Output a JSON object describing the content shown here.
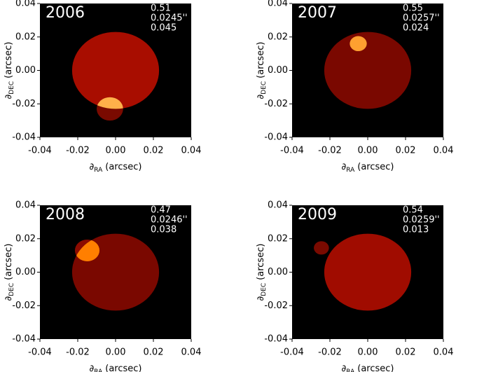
{
  "chart_data": [
    {
      "type": "spot",
      "title": "2006",
      "annotations": [
        "0.51",
        "0.0245''",
        "0.045"
      ],
      "xlabel": {
        "symbol": "∂",
        "sub": "RA",
        "unit": "(arcsec)"
      },
      "ylabel": {
        "symbol": "∂",
        "sub": "DEC",
        "unit": "(arcsec)"
      },
      "xlim": [
        -0.04,
        0.04
      ],
      "ylim": [
        -0.04,
        0.04
      ],
      "xticks": [
        -0.04,
        -0.02,
        {
          "value": 0,
          "label": "0.00"
        },
        0.02,
        0.04
      ],
      "yticks": [
        -0.04,
        -0.02,
        {
          "value": 0,
          "label": "0.00"
        },
        0.02,
        0.04
      ],
      "disk": {
        "x": 0,
        "y": 0,
        "r": 0.023,
        "color": "#a80d00"
      },
      "spot": {
        "x": -0.003,
        "y": -0.023,
        "r": 0.007,
        "color": "#7a0a00",
        "inside_color": "#ffb04a"
      }
    },
    {
      "type": "spot",
      "title": "2007",
      "annotations": [
        "0.55",
        "0.0257''",
        "0.024"
      ],
      "xlabel": {
        "symbol": "∂",
        "sub": "RA",
        "unit": "(arcsec)"
      },
      "ylabel": {
        "symbol": "∂",
        "sub": "DEC",
        "unit": "(arcsec)"
      },
      "xlim": [
        -0.04,
        0.04
      ],
      "ylim": [
        -0.04,
        0.04
      ],
      "xticks": [
        -0.04,
        -0.02,
        {
          "value": 0,
          "label": "0.00"
        },
        0.02,
        0.04
      ],
      "yticks": [
        -0.04,
        -0.02,
        {
          "value": 0,
          "label": "0.00"
        },
        0.02,
        0.04
      ],
      "disk": {
        "x": 0,
        "y": 0,
        "r": 0.023,
        "color": "#7a0800"
      },
      "spot": {
        "x": -0.005,
        "y": 0.016,
        "r": 0.0045,
        "color": "#7a0800",
        "inside_color": "#ffa030"
      }
    },
    {
      "type": "spot",
      "title": "2008",
      "annotations": [
        "0.47",
        "0.0246''",
        "0.038"
      ],
      "xlabel": {
        "symbol": "∂",
        "sub": "RA",
        "unit": "(arcsec)"
      },
      "ylabel": {
        "symbol": "∂",
        "sub": "DEC",
        "unit": "(arcsec)"
      },
      "xlim": [
        -0.04,
        0.04
      ],
      "ylim": [
        -0.04,
        0.04
      ],
      "xticks": [
        -0.04,
        -0.02,
        {
          "value": 0,
          "label": "0.00"
        },
        0.02,
        0.04
      ],
      "yticks": [
        -0.04,
        -0.02,
        {
          "value": 0,
          "label": "0.00"
        },
        0.02,
        0.04
      ],
      "disk": {
        "x": 0,
        "y": 0,
        "r": 0.023,
        "color": "#7a0800"
      },
      "spot": {
        "x": -0.015,
        "y": 0.013,
        "r": 0.0065,
        "color": "#8c0b00",
        "inside_color": "#ff7f00"
      }
    },
    {
      "type": "spot",
      "title": "2009",
      "annotations": [
        "0.54",
        "0.0259''",
        "0.013"
      ],
      "xlabel": {
        "symbol": "∂",
        "sub": "RA",
        "unit": "(arcsec)"
      },
      "ylabel": {
        "symbol": "∂",
        "sub": "DEC",
        "unit": "(arcsec)"
      },
      "xlim": [
        -0.04,
        0.04
      ],
      "ylim": [
        -0.04,
        0.04
      ],
      "xticks": [
        -0.04,
        -0.02,
        {
          "value": 0,
          "label": "0.00"
        },
        0.02,
        0.04
      ],
      "yticks": [
        -0.04,
        -0.02,
        {
          "value": 0,
          "label": "0.00"
        },
        0.02,
        0.04
      ],
      "disk": {
        "x": 0,
        "y": 0,
        "r": 0.023,
        "color": "#a00c00"
      },
      "spot": {
        "x": -0.0245,
        "y": 0.0145,
        "r": 0.004,
        "color": "#7a0a00",
        "inside_color": "#ffc080"
      }
    }
  ]
}
